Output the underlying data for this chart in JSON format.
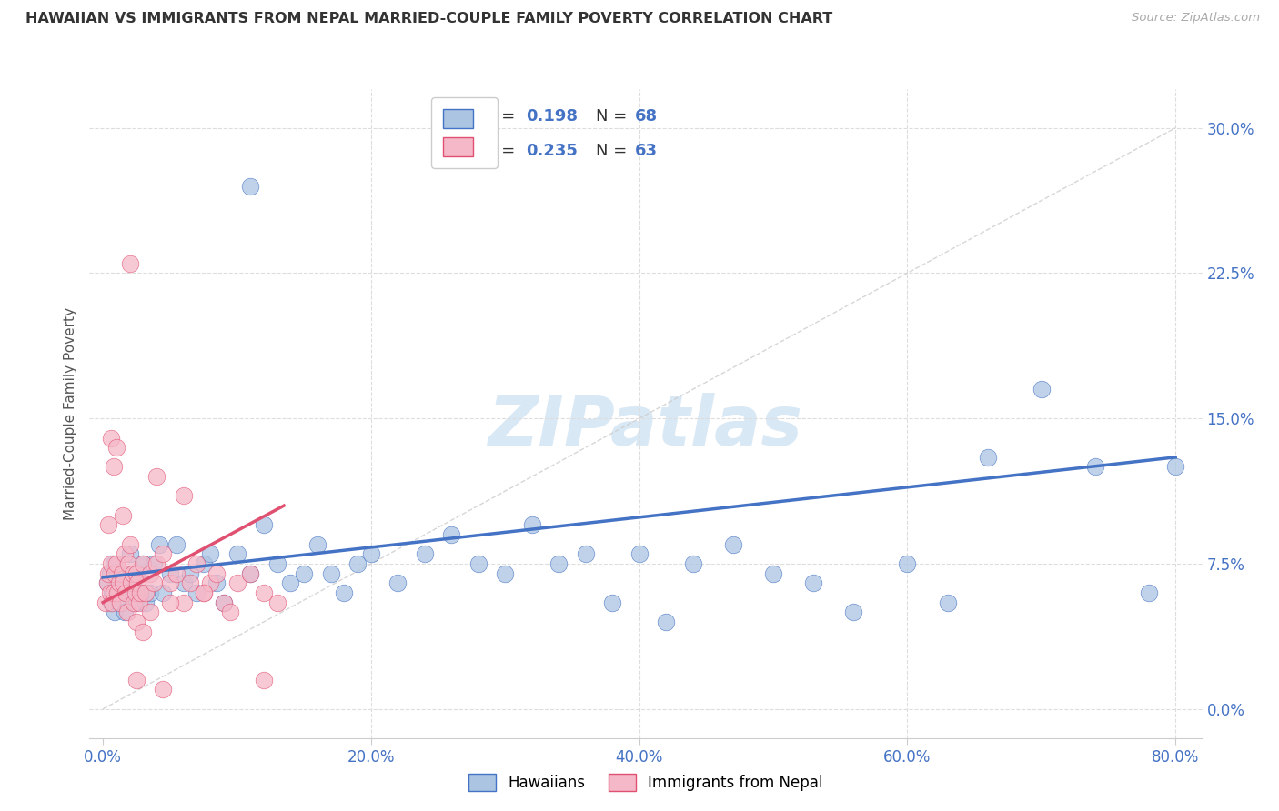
{
  "title": "HAWAIIAN VS IMMIGRANTS FROM NEPAL MARRIED-COUPLE FAMILY POVERTY CORRELATION CHART",
  "source": "Source: ZipAtlas.com",
  "ylabel": "Married-Couple Family Poverty",
  "xlabel_ticks": [
    "0.0%",
    "",
    "",
    "",
    "",
    "20.0%",
    "",
    "",
    "",
    "",
    "40.0%",
    "",
    "",
    "",
    "",
    "60.0%",
    "",
    "",
    "",
    "",
    "80.0%"
  ],
  "xlabel_vals": [
    0,
    4,
    8,
    12,
    16,
    20,
    24,
    28,
    32,
    36,
    40,
    44,
    48,
    52,
    56,
    60,
    64,
    68,
    72,
    76,
    80
  ],
  "ylabel_ticks_right": [
    "0.0%",
    "7.5%",
    "15.0%",
    "22.5%",
    "30.0%"
  ],
  "ylabel_vals": [
    0.0,
    7.5,
    15.0,
    22.5,
    30.0
  ],
  "xlim": [
    -1.0,
    82.0
  ],
  "ylim": [
    -1.5,
    32.0
  ],
  "hawaiians_color": "#aac4e2",
  "nepal_color": "#f5b8c8",
  "trendline_blue": "#4472c4",
  "trendline_pink": "#e05070",
  "diag_color": "#cccccc",
  "watermark": "ZIPatlas",
  "watermark_color": "#d8e8f5",
  "legend_label_hawaiians": "Hawaiians",
  "legend_label_nepal": "Immigrants from Nepal",
  "hawaiians_x": [
    0.3,
    0.5,
    0.6,
    0.7,
    0.8,
    0.9,
    1.0,
    1.1,
    1.2,
    1.3,
    1.5,
    1.6,
    1.8,
    2.0,
    2.2,
    2.4,
    2.6,
    2.8,
    3.0,
    3.2,
    3.5,
    3.8,
    4.2,
    4.5,
    5.0,
    5.5,
    6.0,
    6.5,
    7.0,
    7.5,
    8.0,
    8.5,
    9.0,
    10.0,
    11.0,
    12.0,
    13.0,
    14.0,
    15.0,
    16.0,
    17.0,
    18.0,
    19.0,
    20.0,
    22.0,
    24.0,
    26.0,
    28.0,
    30.0,
    32.0,
    34.0,
    36.0,
    38.0,
    40.0,
    42.0,
    44.0,
    47.0,
    50.0,
    53.0,
    56.0,
    60.0,
    63.0,
    66.0,
    70.0,
    74.0,
    78.0,
    80.0,
    11.0
  ],
  "hawaiians_y": [
    6.5,
    7.0,
    5.5,
    6.0,
    7.5,
    5.0,
    6.0,
    7.0,
    5.5,
    6.5,
    7.0,
    5.0,
    6.0,
    8.0,
    6.5,
    5.5,
    7.0,
    6.0,
    7.5,
    5.5,
    6.0,
    7.5,
    8.5,
    6.0,
    7.0,
    8.5,
    6.5,
    7.0,
    6.0,
    7.5,
    8.0,
    6.5,
    5.5,
    8.0,
    7.0,
    9.5,
    7.5,
    6.5,
    7.0,
    8.5,
    7.0,
    6.0,
    7.5,
    8.0,
    6.5,
    8.0,
    9.0,
    7.5,
    7.0,
    9.5,
    7.5,
    8.0,
    5.5,
    8.0,
    4.5,
    7.5,
    8.5,
    7.0,
    6.5,
    5.0,
    7.5,
    5.5,
    13.0,
    16.5,
    12.5,
    6.0,
    12.5,
    27.0
  ],
  "nepal_x": [
    0.2,
    0.3,
    0.4,
    0.5,
    0.6,
    0.7,
    0.8,
    0.9,
    1.0,
    1.1,
    1.2,
    1.3,
    1.4,
    1.5,
    1.6,
    1.7,
    1.8,
    1.9,
    2.0,
    2.1,
    2.2,
    2.3,
    2.4,
    2.5,
    2.6,
    2.7,
    2.8,
    3.0,
    3.2,
    3.5,
    3.8,
    4.0,
    4.5,
    5.0,
    5.5,
    6.0,
    6.5,
    7.0,
    7.5,
    8.0,
    8.5,
    9.0,
    10.0,
    11.0,
    12.0,
    13.0,
    0.4,
    0.6,
    0.8,
    1.0,
    1.5,
    2.0,
    2.5,
    3.0,
    3.5,
    4.0,
    5.0,
    6.0,
    7.5,
    9.5,
    2.5,
    4.5,
    12.0
  ],
  "nepal_y": [
    5.5,
    6.5,
    7.0,
    6.0,
    7.5,
    5.5,
    6.0,
    7.0,
    7.5,
    6.0,
    6.5,
    5.5,
    7.0,
    6.5,
    8.0,
    6.0,
    5.0,
    7.5,
    8.5,
    6.5,
    7.0,
    5.5,
    6.0,
    7.0,
    6.5,
    5.5,
    6.0,
    7.5,
    6.0,
    7.0,
    6.5,
    7.5,
    8.0,
    6.5,
    7.0,
    5.5,
    6.5,
    7.5,
    6.0,
    6.5,
    7.0,
    5.5,
    6.5,
    7.0,
    6.0,
    5.5,
    9.5,
    14.0,
    12.5,
    13.5,
    10.0,
    23.0,
    4.5,
    4.0,
    5.0,
    12.0,
    5.5,
    11.0,
    6.0,
    5.0,
    1.5,
    1.0,
    1.5
  ],
  "blue_trend_start_x": 0.0,
  "blue_trend_end_x": 80.0,
  "blue_trend_start_y": 6.8,
  "blue_trend_end_y": 13.0,
  "pink_trend_start_x": 0.0,
  "pink_trend_end_x": 13.5,
  "pink_trend_start_y": 5.5,
  "pink_trend_end_y": 10.5
}
